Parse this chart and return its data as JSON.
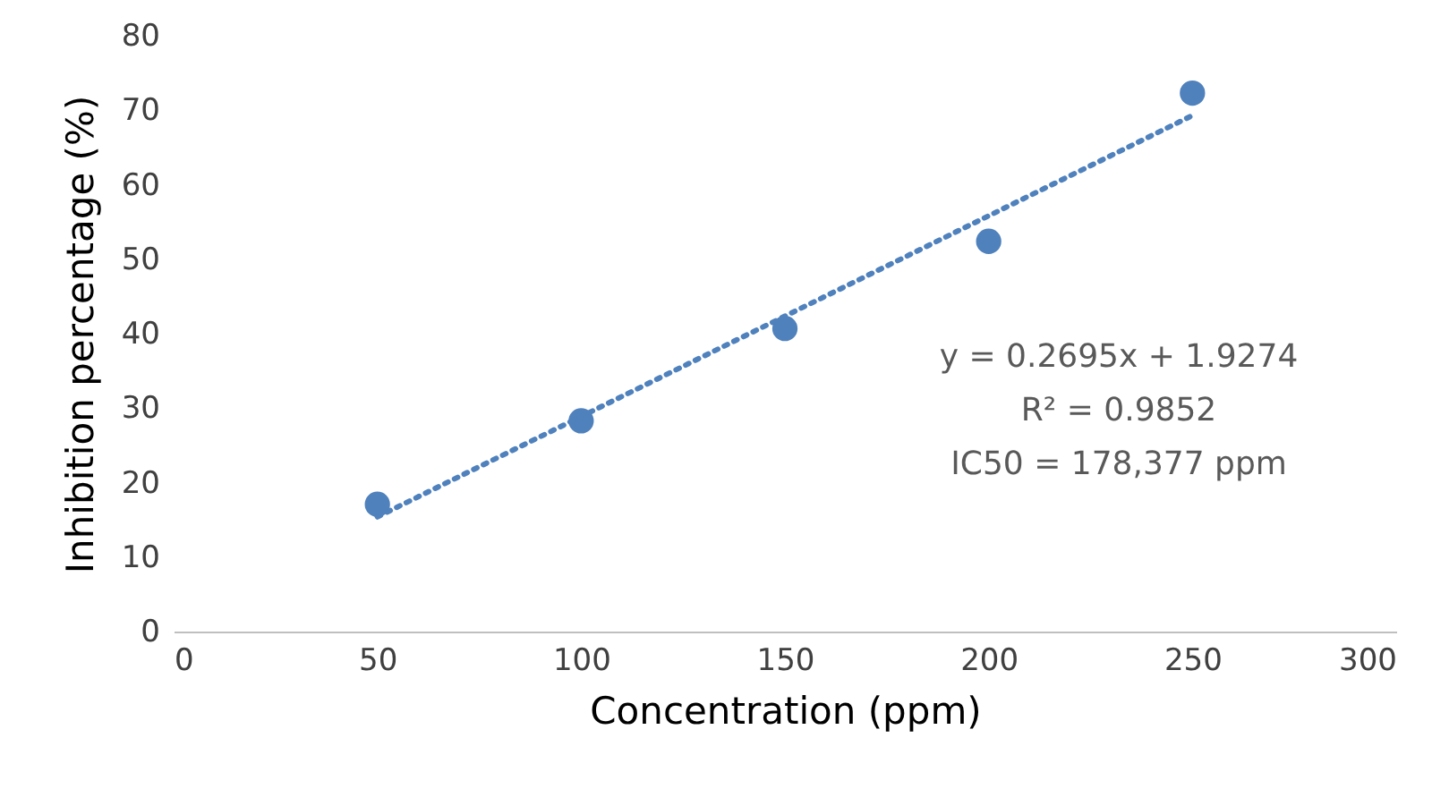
{
  "chart_data": {
    "type": "scatter",
    "xlabel": "Concentration (ppm)",
    "ylabel": "Inhibition percentage (%)",
    "x": [
      50,
      100,
      150,
      200,
      250
    ],
    "series": [
      {
        "color": "#4f81bd",
        "marker": "circle",
        "values": [
          17.1,
          28.3,
          40.7,
          52.4,
          72.3
        ]
      },
      {
        "type": "line",
        "color": "#4f81bd",
        "line_style": "dotted",
        "x": [
          50,
          250
        ],
        "values": [
          15.4,
          69.3
        ]
      }
    ],
    "annotations": [
      "y = 0.2695x + 1.9274",
      "R² = 0.9852",
      "IC50 = 178,377  ppm"
    ],
    "xlim": [
      0,
      300
    ],
    "xticks": [
      0,
      50,
      100,
      150,
      200,
      250,
      300
    ],
    "ylim": [
      0,
      80
    ],
    "yticks": [
      0,
      10,
      20,
      30,
      40,
      50,
      60,
      70,
      80
    ],
    "grid": false
  }
}
